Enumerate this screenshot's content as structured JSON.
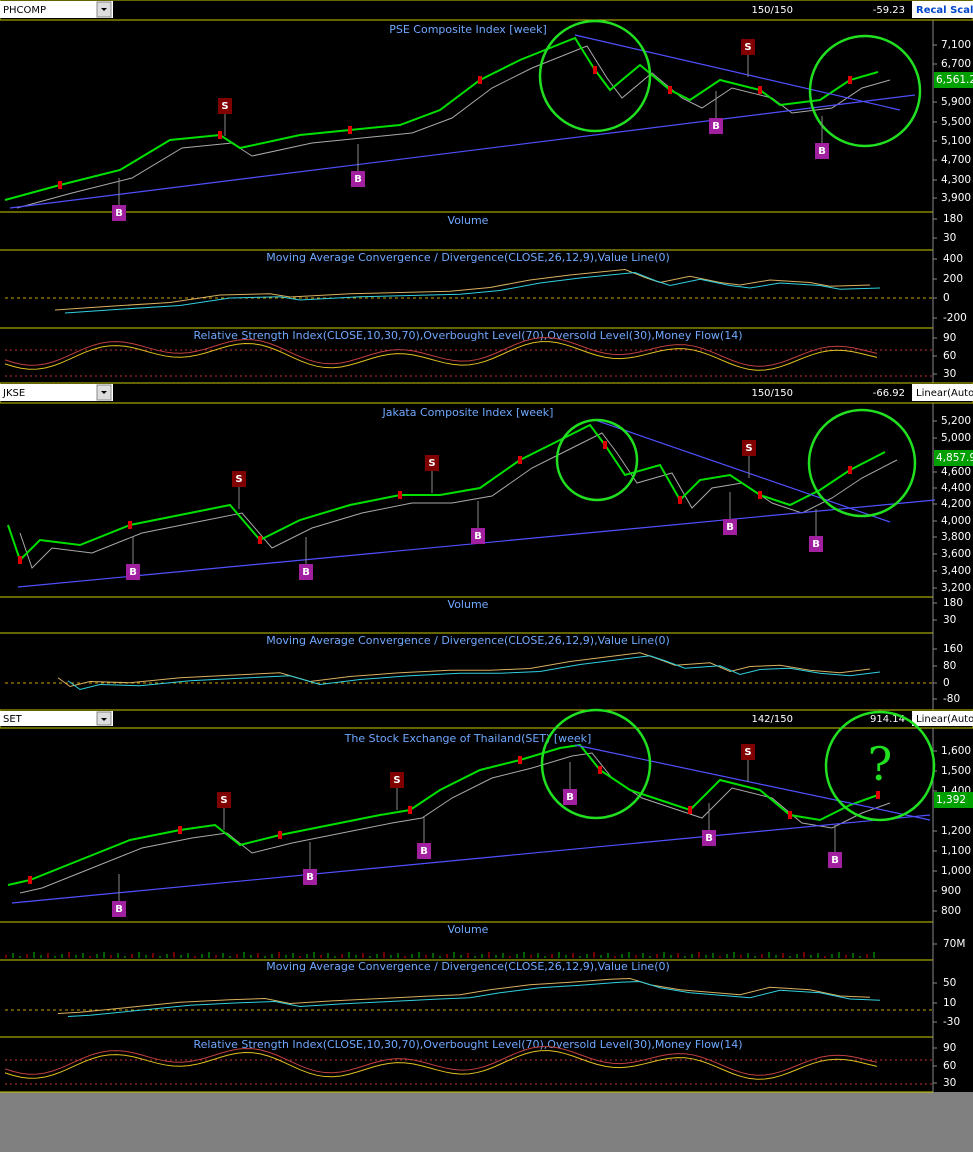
{
  "panels": [
    {
      "symbol": "PHCOMP",
      "count": "150/150",
      "change": "-59.23",
      "scale": "Recal Scale-Line",
      "title": "PSE Composite Index [week]",
      "price_ticks": [
        "7,100",
        "6,700",
        "5,900",
        "5,500",
        "5,100",
        "4,700",
        "4,300",
        "3,900"
      ],
      "last_price": "6,561.2",
      "subpanels": [
        {
          "title": "Volume",
          "ticks": [
            "180",
            "30"
          ]
        },
        {
          "title": "Moving Average Convergence / Divergence(CLOSE,26,12,9),Value Line(0)",
          "ticks": [
            "400",
            "200",
            "0",
            "-200"
          ]
        },
        {
          "title": "Relative Strength Index(CLOSE,10,30,70),Overbought Level(70),Oversold Level(30),Money Flow(14)",
          "ticks": [
            "90",
            "60",
            "30"
          ]
        }
      ],
      "signals": [
        "S",
        "B",
        "B",
        "S",
        "B",
        "B"
      ]
    },
    {
      "symbol": "JKSE",
      "count": "150/150",
      "change": "-66.92",
      "scale": "Linear(Auto",
      "title": "Jakata Composite Index [week]",
      "price_ticks": [
        "5,200",
        "5,000",
        "4,600",
        "4,400",
        "4,200",
        "4,000",
        "3,800",
        "3,600",
        "3,400",
        "3,200"
      ],
      "last_price": "4,857.9",
      "subpanels": [
        {
          "title": "Volume",
          "ticks": [
            "180",
            "30"
          ]
        },
        {
          "title": "Moving Average Convergence / Divergence(CLOSE,26,12,9),Value Line(0)",
          "ticks": [
            "160",
            "80",
            "0",
            "-80"
          ]
        }
      ],
      "signals": [
        "S",
        "B",
        "B",
        "S",
        "B",
        "S",
        "B",
        "B"
      ]
    },
    {
      "symbol": "SET",
      "count": "142/150",
      "change": "914.14",
      "scale": "Linear(Auto",
      "title": "The Stock Exchange of Thailand(SET) [week]",
      "price_ticks": [
        "1,600",
        "1,500",
        "1,400",
        "1,200",
        "1,100",
        "1,000",
        "900",
        "800"
      ],
      "last_price": "1,392",
      "subpanels": [
        {
          "title": "Volume",
          "ticks": [
            "70M"
          ]
        },
        {
          "title": "Moving Average Convergence / Divergence(CLOSE,26,12,9),Value Line(0)",
          "ticks": [
            "50",
            "10",
            "-30"
          ]
        },
        {
          "title": "Relative Strength Index(CLOSE,10,30,70),Overbought Level(70),Oversold Level(30),Money Flow(14)",
          "ticks": [
            "90",
            "60",
            "30"
          ]
        }
      ],
      "signals": [
        "S",
        "B",
        "B",
        "S",
        "B",
        "B",
        "S",
        "B",
        "B"
      ],
      "annotation": "?"
    }
  ]
}
